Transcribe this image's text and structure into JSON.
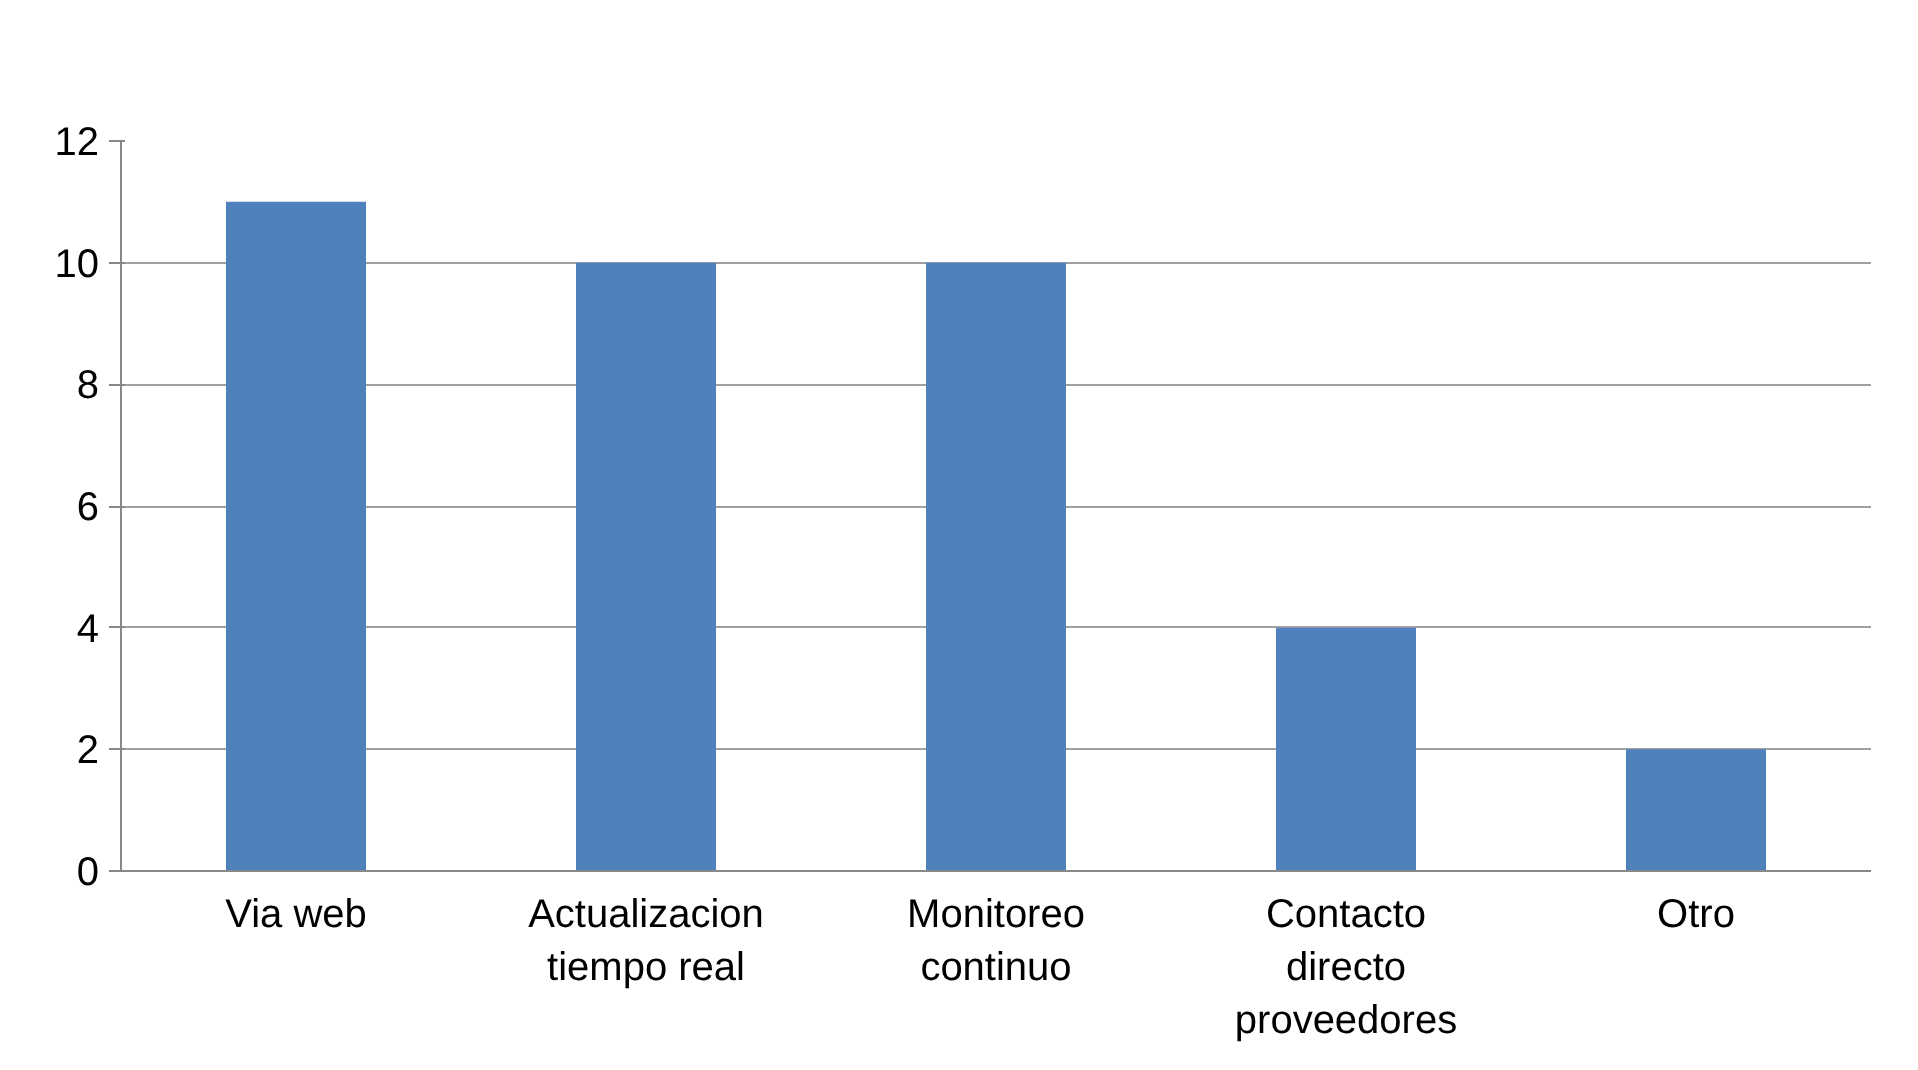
{
  "chart_data": {
    "type": "bar",
    "categories": [
      "Via web",
      "Actualizacion tiempo real",
      "Monitoreo continuo",
      "Contacto directo proveedores",
      "Otro"
    ],
    "values": [
      11,
      10,
      10,
      4,
      2
    ],
    "color": "#4f81bd",
    "ylim": [
      0,
      12
    ],
    "yticks": [
      0,
      2,
      4,
      6,
      8,
      10,
      12
    ],
    "grid": "y"
  }
}
